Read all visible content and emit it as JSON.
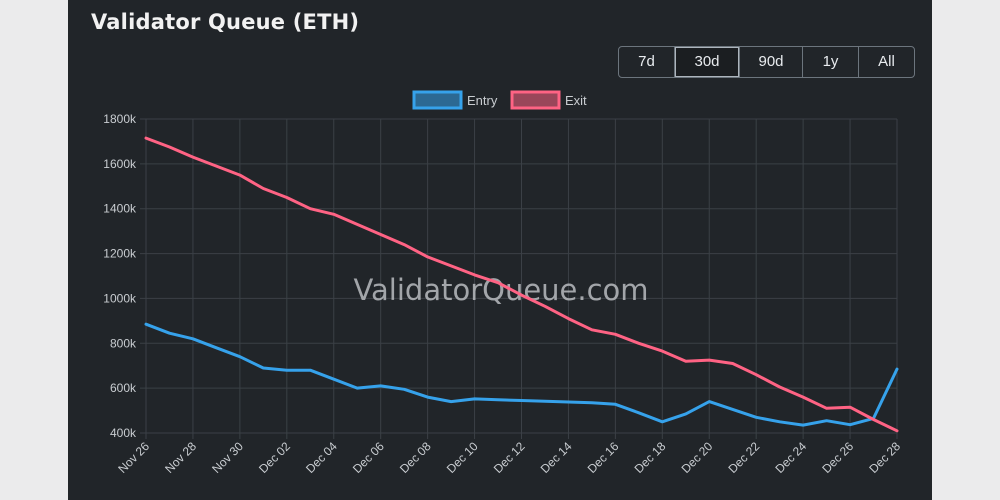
{
  "header": {
    "title": "Validator Queue (ETH)"
  },
  "range_selector": {
    "options": [
      "7d",
      "30d",
      "90d",
      "1y",
      "All"
    ],
    "selected": "30d"
  },
  "watermark": "ValidatorQueue.com",
  "colors": {
    "entry": "#36a2eb",
    "exit": "#ff6384",
    "grid": "#3b4046"
  },
  "chart_data": {
    "type": "line",
    "title": "Validator Queue (ETH)",
    "xlabel": "",
    "ylabel": "",
    "ylim": [
      400000,
      1800000
    ],
    "y_ticks": [
      "400k",
      "600k",
      "800k",
      "1000k",
      "1200k",
      "1400k",
      "1600k",
      "1800k"
    ],
    "x_tick_labels": [
      "Nov 26",
      "Nov 28",
      "Nov 30",
      "Dec 02",
      "Dec 04",
      "Dec 06",
      "Dec 08",
      "Dec 10",
      "Dec 12",
      "Dec 14",
      "Dec 16",
      "Dec 18",
      "Dec 20",
      "Dec 22",
      "Dec 24",
      "Dec 26",
      "Dec 28"
    ],
    "x": [
      "Nov 26",
      "Nov 27",
      "Nov 28",
      "Nov 29",
      "Nov 30",
      "Dec 01",
      "Dec 02",
      "Dec 03",
      "Dec 04",
      "Dec 05",
      "Dec 06",
      "Dec 07",
      "Dec 08",
      "Dec 09",
      "Dec 10",
      "Dec 11",
      "Dec 12",
      "Dec 13",
      "Dec 14",
      "Dec 15",
      "Dec 16",
      "Dec 17",
      "Dec 18",
      "Dec 19",
      "Dec 20",
      "Dec 21",
      "Dec 22",
      "Dec 23",
      "Dec 24",
      "Dec 25",
      "Dec 26",
      "Dec 27",
      "Dec 28"
    ],
    "legend_position": "top-center",
    "series": [
      {
        "name": "Entry",
        "color": "#36a2eb",
        "values": [
          885000,
          845000,
          820000,
          780000,
          740000,
          690000,
          680000,
          680000,
          640000,
          600000,
          610000,
          595000,
          560000,
          540000,
          552000,
          548000,
          545000,
          542000,
          538000,
          535000,
          528000,
          490000,
          450000,
          485000,
          540000,
          505000,
          470000,
          450000,
          435000,
          455000,
          437000,
          465000,
          685000
        ]
      },
      {
        "name": "Exit",
        "color": "#ff6384",
        "values": [
          1715000,
          1675000,
          1630000,
          1590000,
          1550000,
          1490000,
          1450000,
          1400000,
          1375000,
          1330000,
          1285000,
          1240000,
          1185000,
          1145000,
          1105000,
          1070000,
          1015000,
          965000,
          910000,
          860000,
          840000,
          800000,
          765000,
          720000,
          725000,
          710000,
          660000,
          605000,
          560000,
          510000,
          515000,
          460000,
          410000
        ]
      }
    ]
  }
}
